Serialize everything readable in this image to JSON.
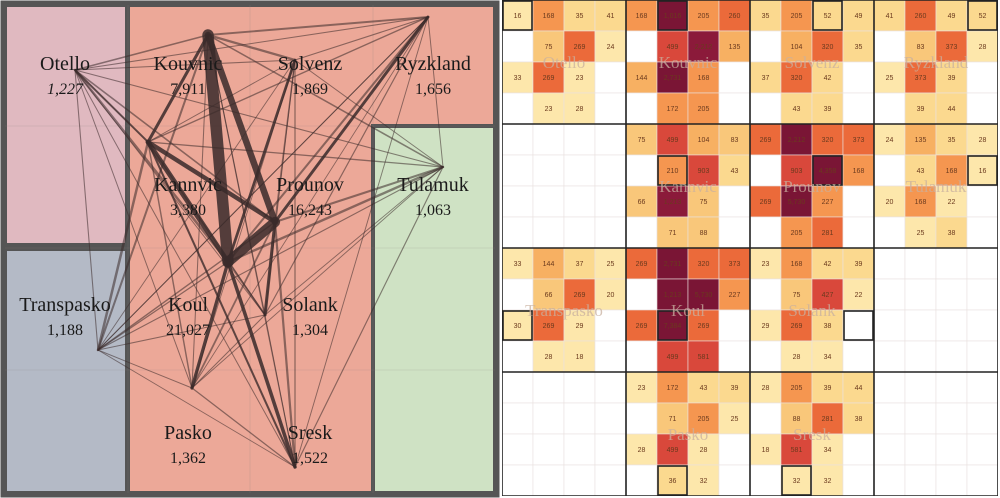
{
  "colors": {
    "pink": "#e0b9c0",
    "salmon": "#eca898",
    "slate": "#b4bac6",
    "mint": "#cfe2c4",
    "border": "#555555",
    "edge": "#3a2a2a"
  },
  "regions": [
    {
      "id": "otello",
      "name": "Otello",
      "count": "1,227",
      "italic": true,
      "color": "pink"
    },
    {
      "id": "kouvnic",
      "name": "Kouvnic",
      "count": "7,911",
      "color": "salmon"
    },
    {
      "id": "solvenz",
      "name": "Solvenz",
      "count": "1,869",
      "color": "salmon"
    },
    {
      "id": "ryzkland",
      "name": "Ryzkland",
      "count": "1,656",
      "color": "salmon"
    },
    {
      "id": "kannvic",
      "name": "Kannvic",
      "count": "3,380",
      "color": "salmon"
    },
    {
      "id": "prounov",
      "name": "Prounov",
      "count": "16,243",
      "color": "salmon"
    },
    {
      "id": "tulamuk",
      "name": "Tulamuk",
      "count": "1,063",
      "color": "mint"
    },
    {
      "id": "transpasko",
      "name": "Transpasko",
      "count": "1,188",
      "color": "slate"
    },
    {
      "id": "koul",
      "name": "Koul",
      "count": "21,027",
      "color": "salmon"
    },
    {
      "id": "solank",
      "name": "Solank",
      "count": "1,304",
      "color": "salmon"
    },
    {
      "id": "pasko",
      "name": "Pasko",
      "count": "1,362",
      "color": "salmon"
    },
    {
      "id": "sresk",
      "name": "Sresk",
      "count": "1,522",
      "color": "salmon"
    }
  ],
  "flows": [
    {
      "from": "koul",
      "to": "kouvnic",
      "weight": 7384
    },
    {
      "from": "koul",
      "to": "prounov",
      "weight": 5730
    },
    {
      "from": "kouvnic",
      "to": "prounov",
      "weight": 2212
    },
    {
      "from": "koul",
      "to": "kannvic",
      "weight": 1213
    },
    {
      "from": "kannvic",
      "to": "prounov",
      "weight": 903
    },
    {
      "from": "koul",
      "to": "sresk",
      "weight": 581
    },
    {
      "from": "koul",
      "to": "pasko",
      "weight": 499
    },
    {
      "from": "prounov",
      "to": "solank",
      "weight": 427
    },
    {
      "from": "kouvnic",
      "to": "kannvic",
      "weight": 410
    },
    {
      "from": "prounov",
      "to": "ryzkland",
      "weight": 373
    },
    {
      "from": "koul",
      "to": "solvenz",
      "weight": 320
    },
    {
      "from": "otello",
      "to": "koul",
      "weight": 269
    },
    {
      "from": "transpasko",
      "to": "kannvic",
      "weight": 258
    },
    {
      "from": "koul",
      "to": "tulamuk",
      "weight": 230
    },
    {
      "from": "kouvnic",
      "to": "solvenz",
      "weight": 205
    },
    {
      "from": "prounov",
      "to": "sresk",
      "weight": 190
    },
    {
      "from": "kannvic",
      "to": "sresk",
      "weight": 172
    },
    {
      "from": "prounov",
      "to": "tulamuk",
      "weight": 168
    },
    {
      "from": "koul",
      "to": "ryzkland",
      "weight": 160
    },
    {
      "from": "kouvnic",
      "to": "transpasko",
      "weight": 150
    },
    {
      "from": "otello",
      "to": "kannvic",
      "weight": 140
    },
    {
      "from": "kouvnic",
      "to": "ryzkland",
      "weight": 130
    },
    {
      "from": "koul",
      "to": "solank",
      "weight": 120
    },
    {
      "from": "pasko",
      "to": "prounov",
      "weight": 110
    },
    {
      "from": "sresk",
      "to": "kannvic",
      "weight": 100
    },
    {
      "from": "kannvic",
      "to": "otello",
      "weight": 90
    },
    {
      "from": "otello",
      "to": "prounov",
      "weight": 80
    },
    {
      "from": "kouvnic",
      "to": "tulamuk",
      "weight": 75
    },
    {
      "from": "kouvnic",
      "to": "otello",
      "weight": 70
    },
    {
      "from": "solvenz",
      "to": "prounov",
      "weight": 65
    },
    {
      "from": "kannvic",
      "to": "pasko",
      "weight": 60
    },
    {
      "from": "transpasko",
      "to": "prounov",
      "weight": 55
    },
    {
      "from": "ryzkland",
      "to": "kannvic",
      "weight": 50
    },
    {
      "from": "tulamuk",
      "to": "kannvic",
      "weight": 45
    },
    {
      "from": "solank",
      "to": "kannvic",
      "weight": 42
    },
    {
      "from": "koul",
      "to": "transpasko",
      "weight": 40
    },
    {
      "from": "pasko",
      "to": "sresk",
      "weight": 38
    },
    {
      "from": "solvenz",
      "to": "sresk",
      "weight": 36
    },
    {
      "from": "ryzkland",
      "to": "solank",
      "weight": 34
    },
    {
      "from": "tulamuk",
      "to": "sresk",
      "weight": 32
    },
    {
      "from": "transpasko",
      "to": "tulamuk",
      "weight": 30
    },
    {
      "from": "otello",
      "to": "tulamuk",
      "weight": 28
    },
    {
      "from": "kouvnic",
      "to": "sresk",
      "weight": 28
    },
    {
      "from": "solvenz",
      "to": "ryzkland",
      "weight": 26
    },
    {
      "from": "otello",
      "to": "transpasko",
      "weight": 25
    },
    {
      "from": "ryzkland",
      "to": "transpasko",
      "weight": 24
    },
    {
      "from": "otello",
      "to": "ryzkland",
      "weight": 23
    },
    {
      "from": "kouvnic",
      "to": "pasko",
      "weight": 22
    },
    {
      "from": "solank",
      "to": "pasko",
      "weight": 21
    },
    {
      "from": "otello",
      "to": "solvenz",
      "weight": 20
    },
    {
      "from": "transpasko",
      "to": "solank",
      "weight": 20
    },
    {
      "from": "otello",
      "to": "sresk",
      "weight": 19
    },
    {
      "from": "otello",
      "to": "pasko",
      "weight": 18
    },
    {
      "from": "transpasko",
      "to": "pasko",
      "weight": 18
    },
    {
      "from": "ryzkland",
      "to": "tulamuk",
      "weight": 18
    },
    {
      "from": "kouvnic",
      "to": "solank",
      "weight": 17
    },
    {
      "from": "solvenz",
      "to": "tulamuk",
      "weight": 16
    },
    {
      "from": "otello",
      "to": "solank",
      "weight": 16
    },
    {
      "from": "solvenz",
      "to": "kannvic",
      "weight": 15
    },
    {
      "from": "ryzkland",
      "to": "sresk",
      "weight": 15
    },
    {
      "from": "tulamuk",
      "to": "solank",
      "weight": 14
    },
    {
      "from": "transpasko",
      "to": "solvenz",
      "weight": 14
    },
    {
      "from": "tulamuk",
      "to": "pasko",
      "weight": 13
    },
    {
      "from": "transpasko",
      "to": "ryzkland",
      "weight": 12
    },
    {
      "from": "solvenz",
      "to": "solank",
      "weight": 12
    },
    {
      "from": "ryzkland",
      "to": "pasko",
      "weight": 11
    },
    {
      "from": "transpasko",
      "to": "sresk",
      "weight": 11
    },
    {
      "from": "solvenz",
      "to": "pasko",
      "weight": 10
    },
    {
      "from": "solank",
      "to": "sresk",
      "weight": 10
    }
  ],
  "matrix": {
    "blocks": [
      {
        "name": "Otello",
        "cells": [
          [
            "16",
            "168",
            "35",
            "41"
          ],
          [
            "",
            "75",
            "269",
            "24"
          ],
          [
            "33",
            "269",
            "23",
            ""
          ],
          [
            "",
            "23",
            "28",
            ""
          ]
        ],
        "dark": [],
        "boxed": [
          [
            0,
            0
          ]
        ]
      },
      {
        "name": "Kouvnic",
        "cells": [
          [
            "168",
            "1,016",
            "205",
            "260"
          ],
          [
            "",
            "499",
            "2,212",
            "135"
          ],
          [
            "144",
            "2,731",
            "168",
            ""
          ],
          [
            "",
            "172",
            "205",
            ""
          ]
        ],
        "dark": [
          [
            0,
            1
          ],
          [
            2,
            1
          ]
        ],
        "boxed": [
          [
            0,
            1
          ]
        ]
      },
      {
        "name": "Solvenz",
        "cells": [
          [
            "35",
            "205",
            "52",
            "49"
          ],
          [
            "",
            "104",
            "320",
            "35"
          ],
          [
            "37",
            "320",
            "42",
            ""
          ],
          [
            "",
            "43",
            "39",
            ""
          ]
        ],
        "dark": [],
        "boxed": [
          [
            0,
            2
          ]
        ]
      },
      {
        "name": "Ryzkland",
        "cells": [
          [
            "41",
            "260",
            "49",
            "52"
          ],
          [
            "",
            "83",
            "373",
            "28"
          ],
          [
            "25",
            "373",
            "39",
            ""
          ],
          [
            "",
            "39",
            "44",
            ""
          ]
        ],
        "dark": [],
        "boxed": [
          [
            0,
            3
          ]
        ]
      },
      {
        "name": "",
        "cells": [
          [
            "",
            "",
            "",
            ""
          ],
          [
            "",
            "",
            "",
            ""
          ],
          [
            "",
            "",
            "",
            ""
          ],
          [
            "",
            "",
            "",
            ""
          ]
        ],
        "dark": [],
        "boxed": []
      },
      {
        "name": "Kannvic",
        "cells": [
          [
            "75",
            "499",
            "104",
            "83"
          ],
          [
            "",
            "210",
            "903",
            "43"
          ],
          [
            "66",
            "1,213",
            "75",
            ""
          ],
          [
            "",
            "71",
            "88",
            ""
          ]
        ],
        "dark": [],
        "boxed": [
          [
            1,
            1
          ]
        ]
      },
      {
        "name": "Prounov",
        "cells": [
          [
            "269",
            "2,212",
            "320",
            "373"
          ],
          [
            "",
            "903",
            "4,358",
            "168"
          ],
          [
            "269",
            "5,730",
            "227",
            ""
          ],
          [
            "",
            "205",
            "281",
            ""
          ]
        ],
        "dark": [
          [
            0,
            1
          ],
          [
            1,
            2
          ],
          [
            2,
            1
          ]
        ],
        "boxed": [
          [
            1,
            2
          ]
        ]
      },
      {
        "name": "Tulamuk",
        "cells": [
          [
            "24",
            "135",
            "35",
            "28"
          ],
          [
            "",
            "43",
            "168",
            "16"
          ],
          [
            "20",
            "168",
            "22",
            ""
          ],
          [
            "",
            "25",
            "38",
            ""
          ]
        ],
        "dark": [],
        "boxed": [
          [
            1,
            3
          ]
        ]
      },
      {
        "name": "Transpasko",
        "cells": [
          [
            "33",
            "144",
            "37",
            "25"
          ],
          [
            "",
            "66",
            "269",
            "20"
          ],
          [
            "30",
            "269",
            "29",
            ""
          ],
          [
            "",
            "28",
            "18",
            ""
          ]
        ],
        "dark": [],
        "boxed": [
          [
            2,
            0
          ]
        ]
      },
      {
        "name": "Koul",
        "cells": [
          [
            "269",
            "2,731",
            "320",
            "373"
          ],
          [
            "",
            "1,213",
            "5,730",
            "227"
          ],
          [
            "269",
            "7,384",
            "269",
            ""
          ],
          [
            "",
            "499",
            "581",
            ""
          ]
        ],
        "dark": [
          [
            0,
            1
          ],
          [
            1,
            1
          ],
          [
            1,
            2
          ],
          [
            2,
            1
          ]
        ],
        "boxed": [
          [
            2,
            1
          ]
        ]
      },
      {
        "name": "Solank",
        "cells": [
          [
            "23",
            "168",
            "42",
            "39"
          ],
          [
            "",
            "75",
            "427",
            "22"
          ],
          [
            "29",
            "269",
            "38",
            ""
          ],
          [
            "",
            "28",
            "34",
            ""
          ]
        ],
        "dark": [],
        "boxed": [
          [
            2,
            3
          ]
        ]
      },
      {
        "name": "",
        "cells": [
          [
            "",
            "",
            "",
            ""
          ],
          [
            "",
            "",
            "",
            ""
          ],
          [
            "",
            "",
            "",
            ""
          ],
          [
            "",
            "",
            "",
            ""
          ]
        ],
        "dark": [],
        "boxed": []
      },
      {
        "name": "",
        "cells": [
          [
            "",
            "",
            "",
            ""
          ],
          [
            "",
            "",
            "",
            ""
          ],
          [
            "",
            "",
            "",
            ""
          ],
          [
            "",
            "",
            "",
            ""
          ]
        ],
        "dark": [],
        "boxed": []
      },
      {
        "name": "Pasko",
        "cells": [
          [
            "23",
            "172",
            "43",
            "39"
          ],
          [
            "",
            "71",
            "205",
            "25"
          ],
          [
            "28",
            "499",
            "28",
            ""
          ],
          [
            "",
            "36",
            "32",
            ""
          ]
        ],
        "dark": [],
        "boxed": [
          [
            3,
            1
          ]
        ]
      },
      {
        "name": "Sresk",
        "cells": [
          [
            "28",
            "205",
            "39",
            "44"
          ],
          [
            "",
            "88",
            "281",
            "38"
          ],
          [
            "18",
            "581",
            "34",
            ""
          ],
          [
            "",
            "32",
            "32",
            ""
          ]
        ],
        "dark": [],
        "boxed": [
          [
            3,
            1
          ]
        ]
      },
      {
        "name": "",
        "cells": [
          [
            "",
            "",
            "",
            ""
          ],
          [
            "",
            "",
            "",
            ""
          ],
          [
            "",
            "",
            "",
            ""
          ],
          [
            "",
            "",
            "",
            ""
          ]
        ],
        "dark": [],
        "boxed": []
      }
    ]
  }
}
